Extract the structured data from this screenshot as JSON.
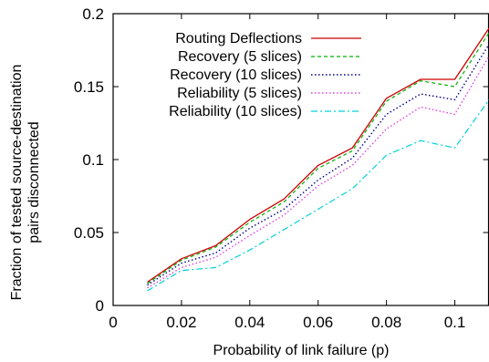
{
  "chart_data": {
    "type": "line",
    "xlabel": "Probability of link failure (p)",
    "ylabel_lines": [
      "Fraction of tested source-destination",
      "pairs disconnected"
    ],
    "xlim": [
      0,
      0.11
    ],
    "ylim": [
      0,
      0.2
    ],
    "xticks": [
      0,
      0.02,
      0.04,
      0.06,
      0.08,
      0.1
    ],
    "xtick_labels": [
      "0",
      "0.02",
      "0.04",
      "0.06",
      "0.08",
      "0.1"
    ],
    "yticks": [
      0,
      0.05,
      0.1,
      0.15,
      0.2
    ],
    "ytick_labels": [
      "0",
      "0.05",
      "0.1",
      "0.15",
      "0.2"
    ],
    "x": [
      0.01,
      0.02,
      0.03,
      0.04,
      0.05,
      0.06,
      0.07,
      0.08,
      0.09,
      0.1,
      0.11
    ],
    "legend_position": "top-left",
    "grid": false,
    "series": [
      {
        "name": "Routing Deflections",
        "color": "#cc0000",
        "dash": "",
        "width": 1.3,
        "values": [
          0.016,
          0.032,
          0.041,
          0.059,
          0.073,
          0.096,
          0.108,
          0.142,
          0.155,
          0.155,
          0.19
        ]
      },
      {
        "name": "Recovery (5 slices)",
        "color": "#00b000",
        "dash": "4,3",
        "width": 1.2,
        "values": [
          0.015,
          0.031,
          0.04,
          0.057,
          0.071,
          0.094,
          0.106,
          0.14,
          0.154,
          0.15,
          0.187
        ]
      },
      {
        "name": "Recovery (10 slices)",
        "color": "#00008b",
        "dash": "1.5,2.5",
        "width": 1.4,
        "values": [
          0.014,
          0.029,
          0.036,
          0.053,
          0.066,
          0.086,
          0.101,
          0.131,
          0.145,
          0.141,
          0.179
        ]
      },
      {
        "name": "Reliability (5 slices)",
        "color": "#e040e0",
        "dash": "1.5,2.5",
        "width": 1.4,
        "values": [
          0.012,
          0.026,
          0.033,
          0.048,
          0.062,
          0.082,
          0.096,
          0.121,
          0.136,
          0.131,
          0.171
        ]
      },
      {
        "name": "Reliability (10 slices)",
        "color": "#00d0d8",
        "dash": "7,3,2,3",
        "width": 1.2,
        "values": [
          0.01,
          0.024,
          0.026,
          0.038,
          0.052,
          0.066,
          0.08,
          0.103,
          0.113,
          0.108,
          0.141
        ]
      }
    ]
  }
}
